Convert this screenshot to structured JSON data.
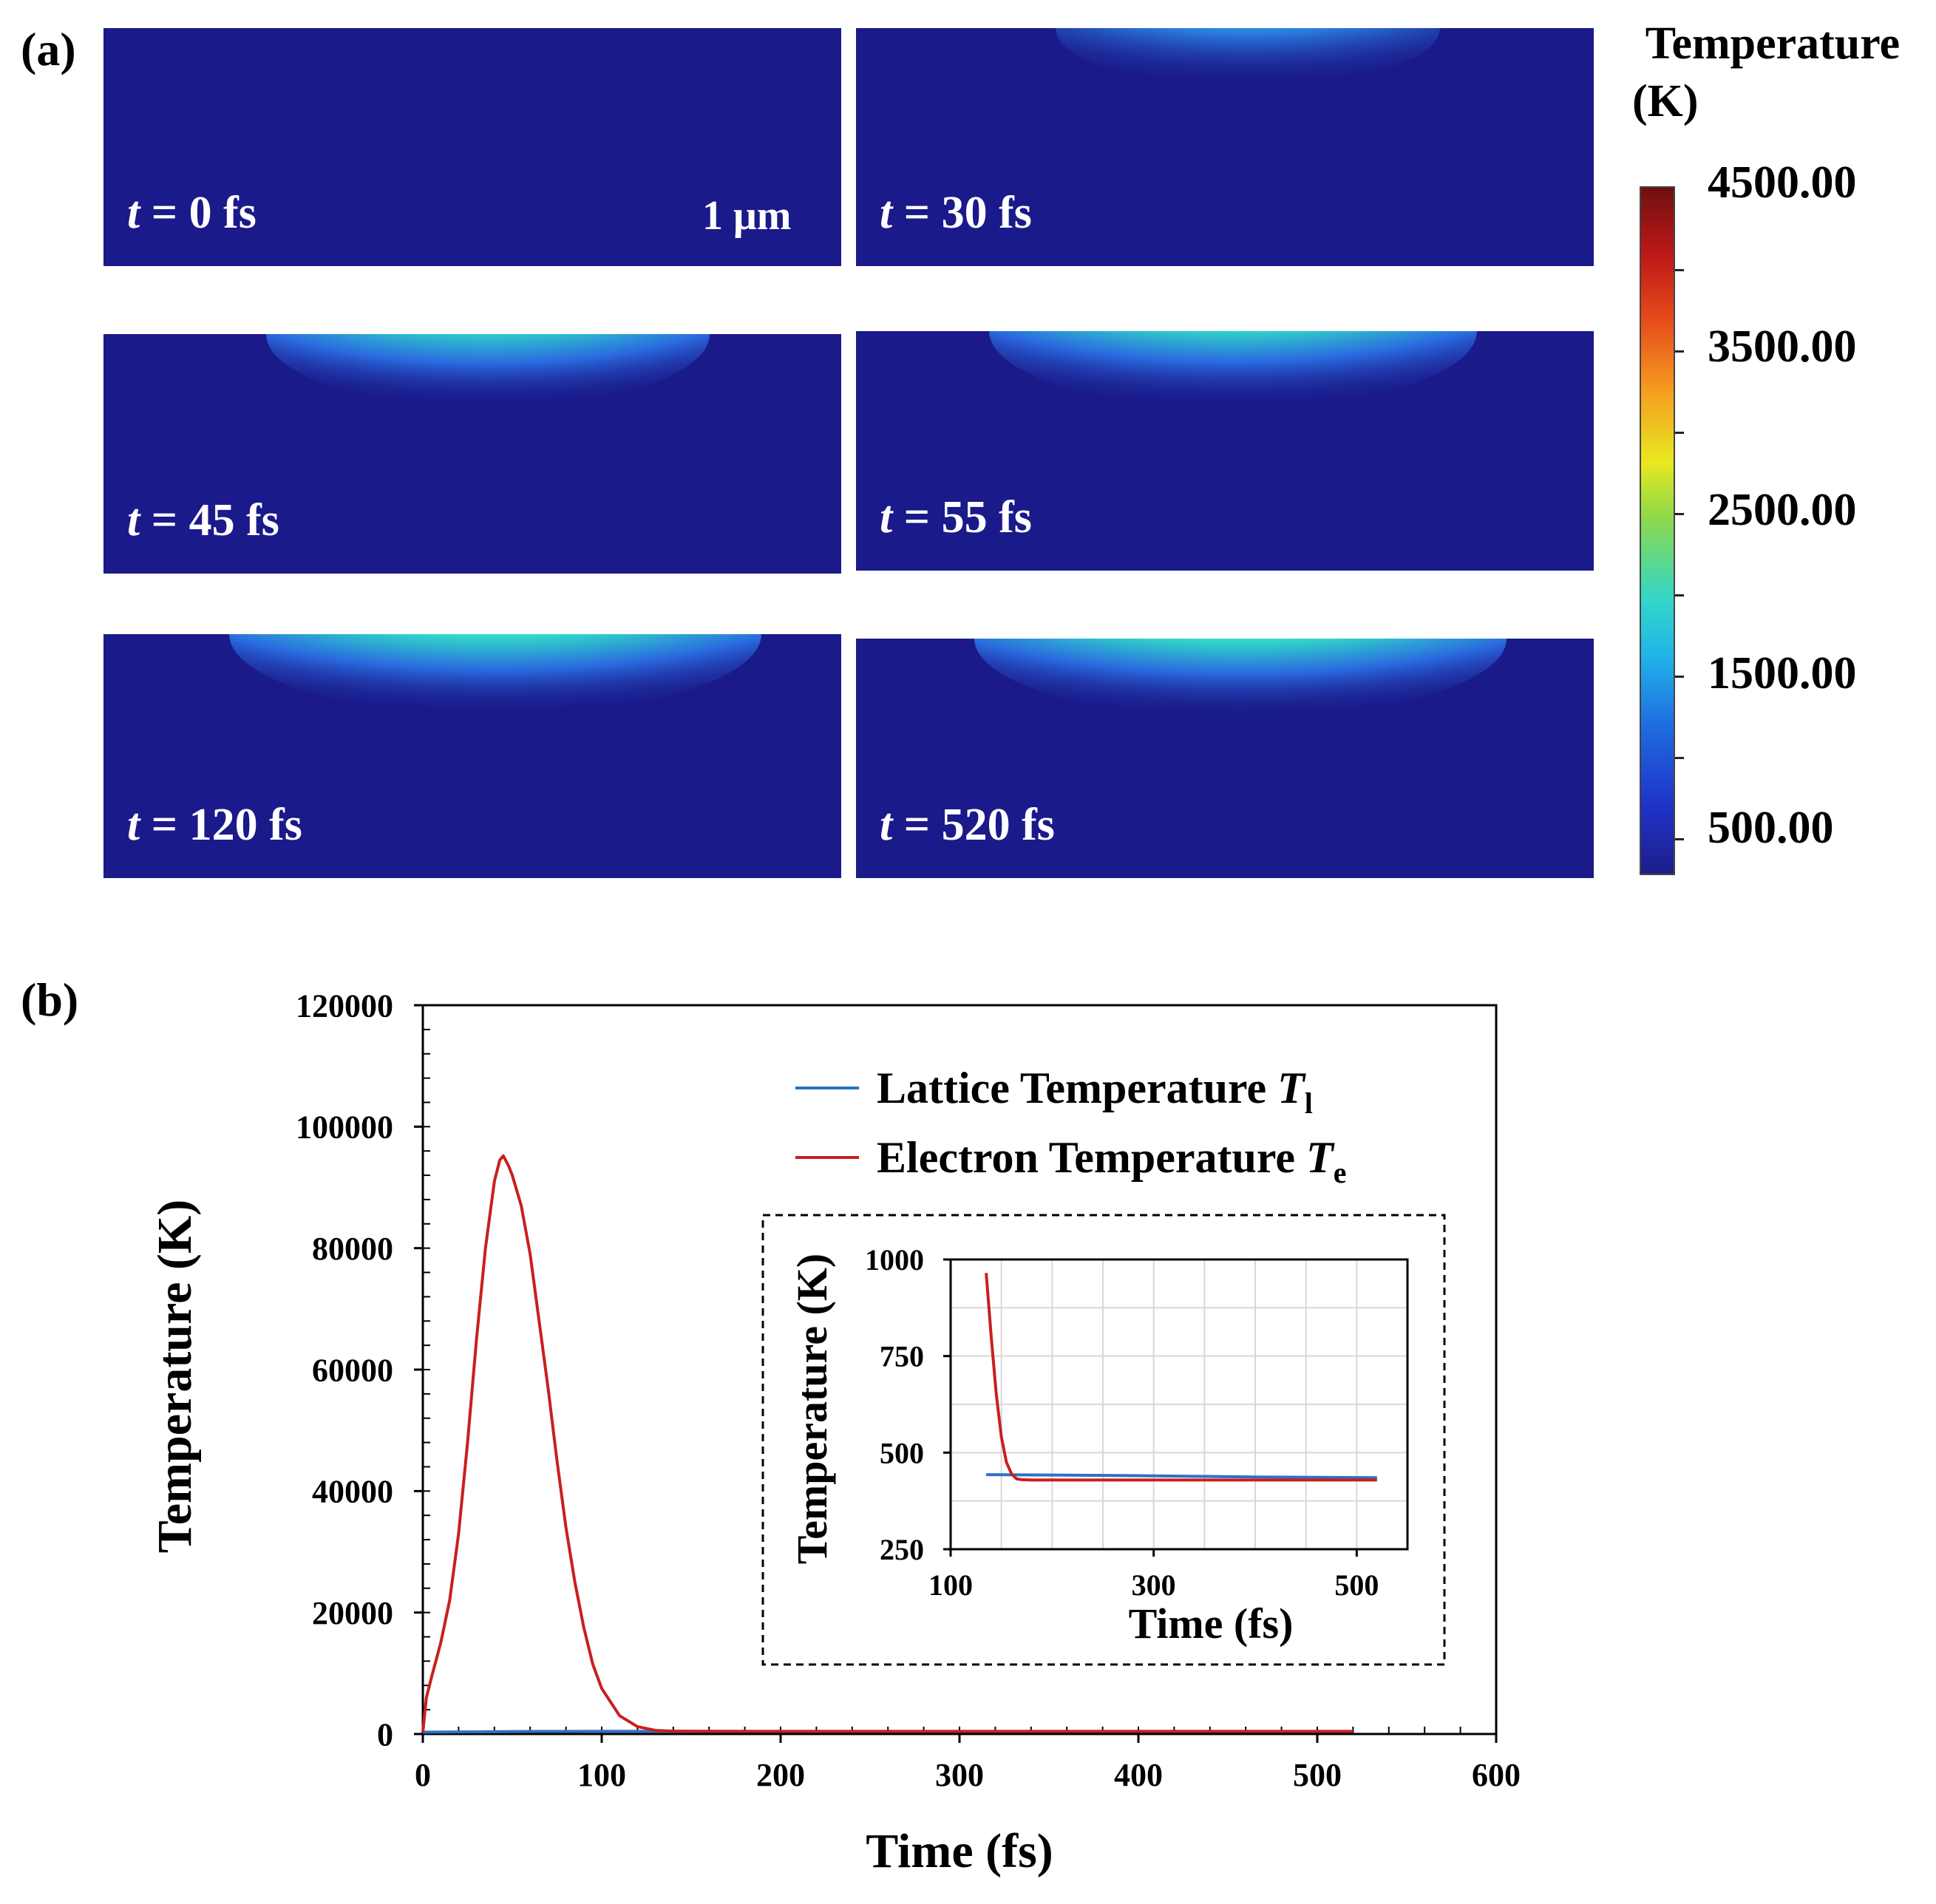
{
  "panel_a": {
    "label": "(a)",
    "tiles": [
      {
        "t": "t",
        "eq": " = 0 fs"
      },
      {
        "t": "t",
        "eq": " = 30 fs"
      },
      {
        "t": "t",
        "eq": " = 45 fs"
      },
      {
        "t": "t",
        "eq": " = 55 fs"
      },
      {
        "t": "t",
        "eq": " = 120 fs"
      },
      {
        "t": "t",
        "eq": " = 520 fs"
      }
    ],
    "scale_bar": "1 μm",
    "colorbar": {
      "title_line1": "Temperature",
      "title_line2": "(K)",
      "labels": [
        "4500.00",
        "3500.00",
        "2500.00",
        "1500.00",
        "500.00"
      ]
    }
  },
  "panel_b": {
    "label": "(b)"
  },
  "chart_data": [
    {
      "type": "line",
      "xlabel": "Time (fs)",
      "ylabel": "Temperature (K)",
      "xlim": [
        0,
        600
      ],
      "ylim": [
        0,
        120000
      ],
      "xticks": [
        0,
        100,
        200,
        300,
        400,
        500,
        600
      ],
      "yticks": [
        0,
        20000,
        40000,
        60000,
        80000,
        100000,
        120000
      ],
      "legend": {
        "position": "top-right",
        "entries": [
          {
            "name": "Lattice Temperature",
            "symbol": "T",
            "sub": "l",
            "color": "#2e72c4"
          },
          {
            "name": "Electron Temperature",
            "symbol": "T",
            "sub": "e",
            "color": "#c91f1f"
          }
        ]
      },
      "series": [
        {
          "name": "Lattice Temperature Tl",
          "color": "#2e72c4",
          "x": [
            0,
            30,
            60,
            100,
            150,
            200,
            300,
            400,
            520
          ],
          "y": [
            300,
            350,
            420,
            440,
            445,
            443,
            440,
            436,
            433
          ]
        },
        {
          "name": "Electron Temperature Te",
          "color": "#c91f1f",
          "x": [
            0,
            2,
            5,
            10,
            15,
            20,
            25,
            30,
            35,
            40,
            43,
            45,
            48,
            50,
            55,
            60,
            65,
            70,
            75,
            80,
            85,
            90,
            95,
            100,
            110,
            120,
            130,
            140,
            150,
            200,
            300,
            400,
            520
          ],
          "y": [
            300,
            6000,
            9500,
            15000,
            22000,
            33000,
            48000,
            65000,
            80000,
            91000,
            94500,
            95200,
            93500,
            92000,
            87000,
            79000,
            68000,
            57000,
            45000,
            34000,
            25000,
            17500,
            11500,
            7500,
            3000,
            1200,
            600,
            480,
            440,
            430,
            430,
            430,
            430
          ]
        }
      ]
    },
    {
      "type": "line",
      "xlabel": "Time (fs)",
      "ylabel": "Temperature (K)",
      "xlim": [
        100,
        550
      ],
      "ylim": [
        250,
        1000
      ],
      "xticks": [
        100,
        300,
        500
      ],
      "yticks": [
        250,
        500,
        750,
        1000
      ],
      "grid": true,
      "series": [
        {
          "name": "Lattice Temperature Tl",
          "color": "#2e72c4",
          "x": [
            135,
            200,
            300,
            400,
            520
          ],
          "y": [
            443,
            442,
            440,
            437,
            435
          ]
        },
        {
          "name": "Electron Temperature Te",
          "color": "#c91f1f",
          "x": [
            135,
            140,
            145,
            150,
            155,
            160,
            165,
            170,
            180,
            200,
            300,
            400,
            520
          ],
          "y": [
            965,
            800,
            650,
            540,
            475,
            445,
            432,
            430,
            429,
            429,
            429,
            429,
            429
          ]
        }
      ]
    }
  ]
}
